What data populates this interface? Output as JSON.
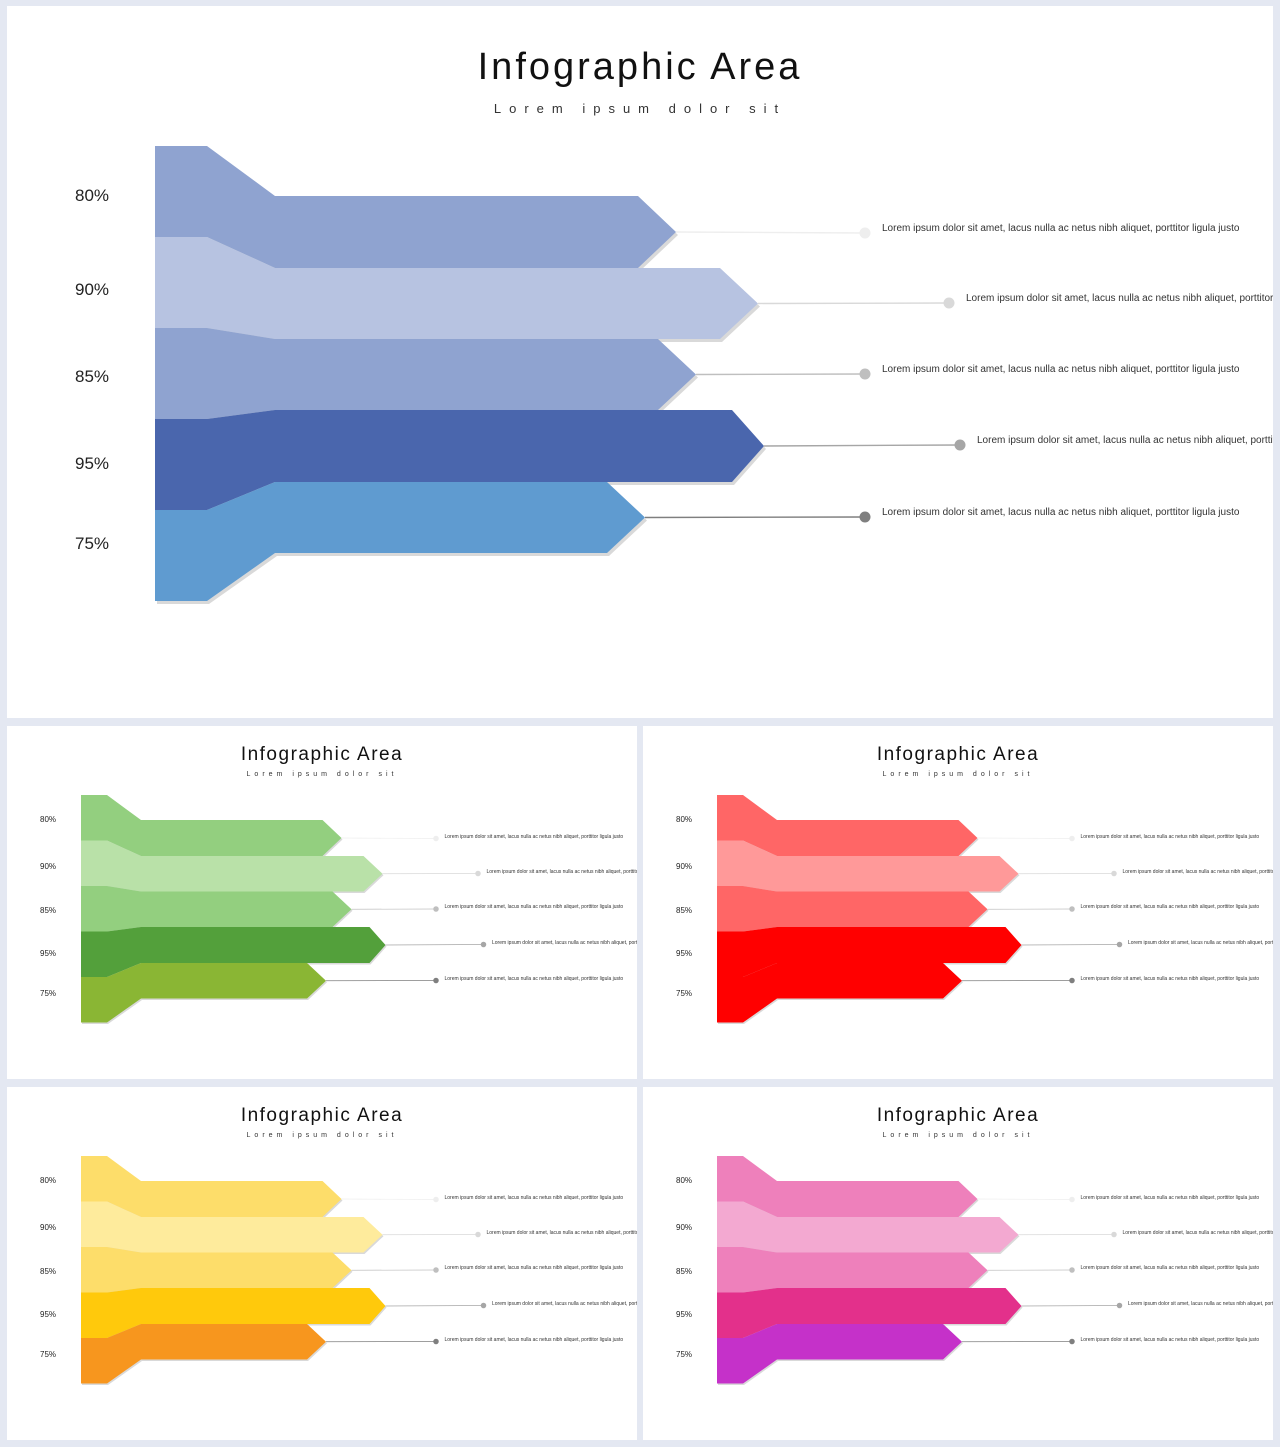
{
  "slides": [
    {
      "title": "Infographic Area",
      "subtitle": "Lorem ipsum dolor sit",
      "colors": [
        "#8fa3d0",
        "#b7c3e1",
        "#8fa3d0",
        "#4a66ad",
        "#5f9bd0"
      ],
      "dot_colors": [
        "#eeeeee",
        "#d9d9d9",
        "#bfbfbf",
        "#a6a6a6",
        "#7f7f7f"
      ]
    },
    {
      "title": "Infographic Area",
      "subtitle": "Lorem ipsum dolor sit",
      "colors": [
        "#93cf7f",
        "#b9e1a8",
        "#93cf7f",
        "#53a03b",
        "#8ab634"
      ],
      "dot_colors": [
        "#eeeeee",
        "#d9d9d9",
        "#bfbfbf",
        "#a6a6a6",
        "#7f7f7f"
      ]
    },
    {
      "title": "Infographic Area",
      "subtitle": "Lorem ipsum dolor sit",
      "colors": [
        "#ff6666",
        "#ff9999",
        "#ff6666",
        "#ff0000",
        "#ff0000"
      ],
      "dot_colors": [
        "#eeeeee",
        "#d9d9d9",
        "#bfbfbf",
        "#a6a6a6",
        "#7f7f7f"
      ]
    },
    {
      "title": "Infographic Area",
      "subtitle": "Lorem ipsum dolor sit",
      "colors": [
        "#fddd6a",
        "#feeb9c",
        "#fddd6a",
        "#ffc90c",
        "#f7961e"
      ],
      "dot_colors": [
        "#eeeeee",
        "#d9d9d9",
        "#bfbfbf",
        "#a6a6a6",
        "#7f7f7f"
      ]
    },
    {
      "title": "Infographic Area",
      "subtitle": "Lorem ipsum dolor sit",
      "colors": [
        "#ee80bb",
        "#f3a9d1",
        "#ee80bb",
        "#e3308b",
        "#c531c9"
      ],
      "dot_colors": [
        "#eeeeee",
        "#d9d9d9",
        "#bfbfbf",
        "#a6a6a6",
        "#7f7f7f"
      ]
    }
  ],
  "items": [
    {
      "value": "80%",
      "text": "Lorem ipsum dolor sit amet, lacus nulla ac netus nibh aliquet, porttitor ligula justo"
    },
    {
      "value": "90%",
      "text": "Lorem ipsum dolor sit amet, lacus nulla ac netus nibh aliquet, porttitor ligula justo"
    },
    {
      "value": "85%",
      "text": "Lorem ipsum dolor sit amet, lacus nulla ac netus nibh aliquet, porttitor ligula justo"
    },
    {
      "value": "95%",
      "text": "Lorem ipsum dolor sit amet, lacus nulla ac netus nibh aliquet, porttitor ligula justo"
    },
    {
      "value": "75%",
      "text": "Lorem ipsum dolor sit amet, lacus nulla ac netus nibh aliquet, porttitor ligula justo"
    }
  ]
}
